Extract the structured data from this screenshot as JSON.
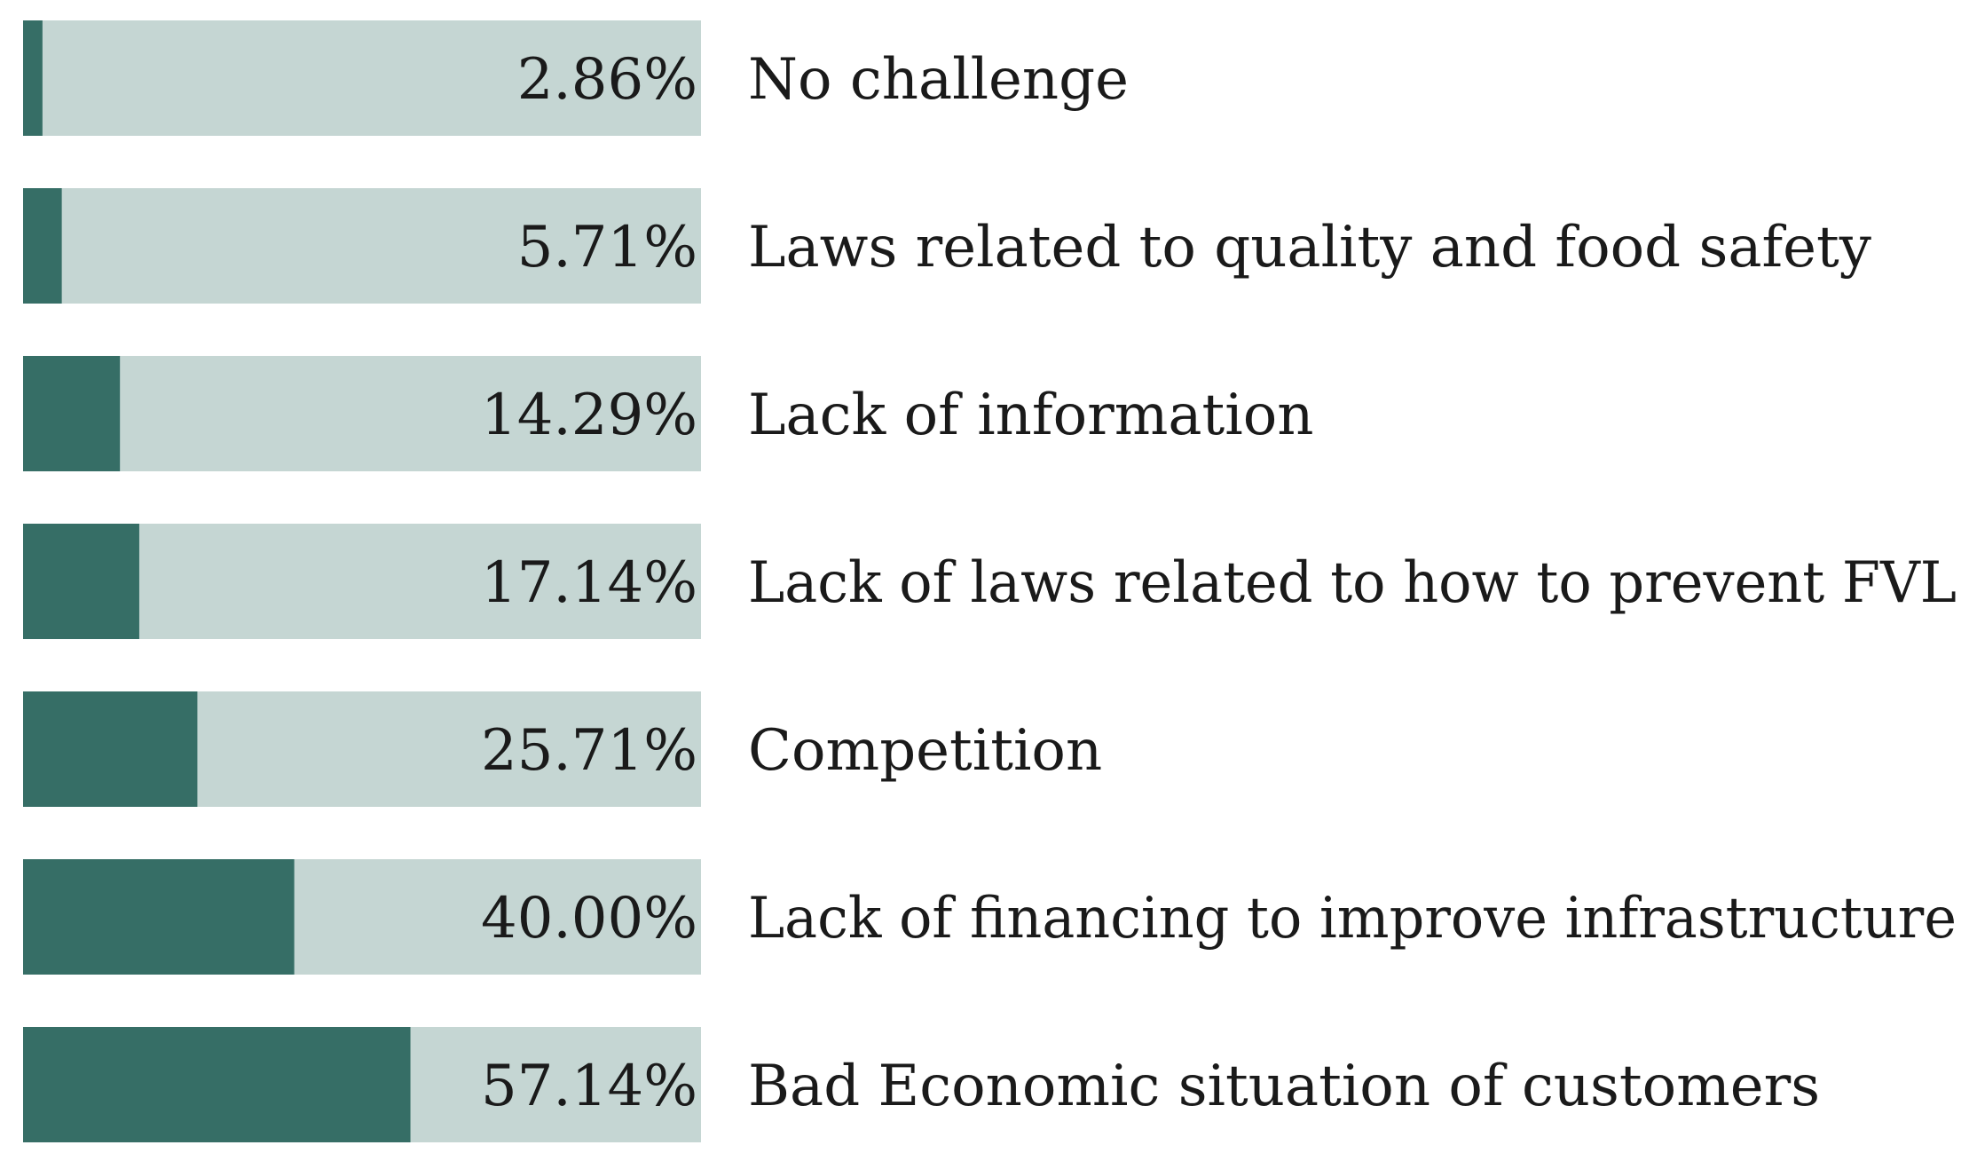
{
  "chart_data": {
    "type": "bar",
    "orientation": "horizontal",
    "categories": [
      "No challenge",
      "Laws related to quality and food safety",
      "Lack of information",
      "Lack of laws related to how to prevent FVL",
      "Competition",
      "Lack of financing to improve infrastructure",
      "Bad Economic situation of customers"
    ],
    "values": [
      2.86,
      5.71,
      14.29,
      17.14,
      25.71,
      40.0,
      57.14
    ],
    "value_labels": [
      "2.86%",
      "5.71%",
      "14.29%",
      "17.14%",
      "25.71%",
      "40.00%",
      "57.14%"
    ],
    "title": "",
    "xlabel": "",
    "ylabel": "",
    "xlim": [
      0,
      100
    ],
    "grid": false,
    "legend": "none",
    "colors": {
      "bar_fill": "#366e66",
      "bar_track": "#c5d6d3"
    }
  }
}
